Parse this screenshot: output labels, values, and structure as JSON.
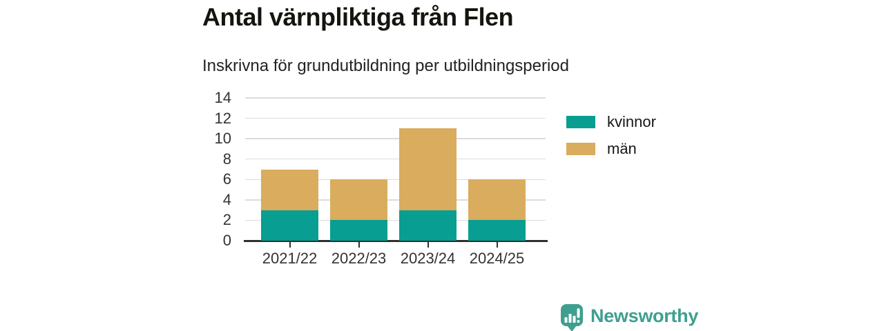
{
  "header": {
    "title": "Antal värnpliktiga från Flen",
    "subtitle": "Inskrivna för grundutbildning per utbildningsperiod"
  },
  "chart_data": {
    "type": "bar",
    "stacked": true,
    "title": "Antal värnpliktiga från Flen",
    "subtitle": "Inskrivna för grundutbildning per utbildningsperiod",
    "xlabel": "",
    "ylabel": "",
    "categories": [
      "2021/22",
      "2022/23",
      "2023/24",
      "2024/25"
    ],
    "series": [
      {
        "name": "kvinnor",
        "values": [
          3,
          2,
          3,
          2
        ],
        "color": "#089e91"
      },
      {
        "name": "män",
        "values": [
          4,
          4,
          8,
          4
        ],
        "color": "#d9ac5e"
      }
    ],
    "totals": [
      7,
      6,
      11,
      6
    ],
    "ylim": [
      0,
      14
    ],
    "yticks": [
      0,
      2,
      4,
      6,
      8,
      10,
      12,
      14
    ],
    "grid": true,
    "legend_position": "right"
  },
  "style_colors": {
    "kvinnor": "#089e91",
    "man": "#d9ac5e",
    "gridline": "#dcdcdc",
    "axis": "#2f2f2f",
    "brand_teal": "#3e9f8f"
  },
  "branding": {
    "name": "Newsworthy"
  }
}
